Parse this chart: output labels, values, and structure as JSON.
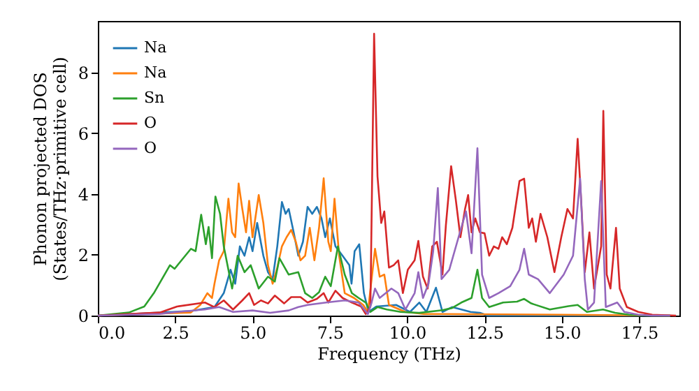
{
  "chart_data": {
    "type": "line",
    "xlabel": "Frequency (THz)",
    "ylabel": "Phonon projected DOS\n(States/THz·primitive cell)",
    "xlim": [
      0,
      18.8
    ],
    "ylim": [
      0,
      9.7
    ],
    "xticks": [
      {
        "value": 0,
        "label": "0.0"
      },
      2.5,
      {
        "value": 5,
        "label": "5.0"
      },
      7.5,
      {
        "value": 10,
        "label": "10.0"
      },
      12.5,
      {
        "value": 15,
        "label": "15.0"
      },
      17.5
    ],
    "yticks": [
      0,
      2,
      4,
      6,
      8
    ],
    "grid": false,
    "legend": "top left",
    "line_style": "solid",
    "marker": "none",
    "series": [
      {
        "name": "Na",
        "color": "#1f77b4",
        "x": [
          0,
          3.0,
          3.77,
          4.07,
          4.29,
          4.44,
          4.59,
          4.74,
          4.89,
          5.0,
          5.15,
          5.35,
          5.5,
          5.65,
          5.8,
          5.95,
          6.07,
          6.17,
          6.33,
          6.48,
          6.63,
          6.78,
          6.93,
          7.08,
          7.23,
          7.35,
          7.5,
          7.68,
          7.91,
          8.13,
          8.2,
          8.3,
          8.45,
          8.6,
          8.75,
          9.0,
          9.64,
          10.09,
          10.39,
          10.62,
          10.93,
          11.14,
          11.45,
          12.05,
          12.35,
          12.6,
          18.5
        ],
        "values": [
          0,
          0.15,
          0.28,
          0.74,
          1.51,
          1.05,
          2.28,
          1.97,
          2.58,
          2.12,
          3.05,
          1.97,
          1.43,
          1.2,
          2.28,
          3.74,
          3.35,
          3.51,
          2.74,
          1.97,
          2.43,
          3.58,
          3.35,
          3.58,
          3.2,
          2.58,
          3.2,
          2.28,
          1.97,
          1.66,
          1.05,
          2.12,
          2.35,
          0.74,
          0.12,
          0.3,
          0.35,
          0.12,
          0.43,
          0.12,
          0.92,
          0.12,
          0.28,
          0.12,
          0.09,
          0,
          0
        ]
      },
      {
        "name": "Na",
        "color": "#ff7f0e",
        "x": [
          0,
          3.0,
          3.31,
          3.54,
          3.69,
          3.77,
          3.92,
          4.07,
          4.22,
          4.34,
          4.44,
          4.55,
          4.67,
          4.79,
          4.89,
          5.0,
          5.2,
          5.35,
          5.5,
          5.65,
          5.8,
          5.95,
          6.1,
          6.25,
          6.4,
          6.55,
          6.7,
          6.85,
          7.0,
          7.15,
          7.3,
          7.45,
          7.53,
          7.65,
          7.8,
          7.98,
          8.28,
          8.58,
          8.73,
          8.96,
          9.11,
          9.26,
          9.41,
          9.94,
          10.54,
          11.14,
          15.0,
          18.5
        ],
        "values": [
          0,
          0.1,
          0.35,
          0.74,
          0.58,
          1.05,
          1.82,
          2.12,
          3.85,
          2.74,
          2.58,
          4.35,
          3.51,
          2.74,
          3.78,
          2.58,
          3.97,
          3.05,
          1.66,
          1.05,
          1.58,
          2.28,
          2.58,
          2.82,
          2.43,
          1.82,
          1.97,
          2.89,
          1.82,
          2.89,
          4.52,
          2.43,
          2.12,
          3.85,
          1.97,
          0.74,
          0.58,
          0.35,
          0.12,
          2.2,
          1.28,
          1.35,
          0.35,
          0.12,
          0.05,
          0.05,
          0.03,
          0
        ]
      },
      {
        "name": "Sn",
        "color": "#2ca02c",
        "x": [
          0,
          1.0,
          1.5,
          1.81,
          2.33,
          2.48,
          3.01,
          3.16,
          3.34,
          3.49,
          3.58,
          3.69,
          3.8,
          3.95,
          4.07,
          4.34,
          4.52,
          4.74,
          4.94,
          5.2,
          5.5,
          5.72,
          5.87,
          6.17,
          6.48,
          6.7,
          6.93,
          7.15,
          7.35,
          7.53,
          7.76,
          7.98,
          8.21,
          8.43,
          8.66,
          8.81,
          9.04,
          9.34,
          9.79,
          10.39,
          11.14,
          11.45,
          11.75,
          12.08,
          12.27,
          12.42,
          12.65,
          13.1,
          13.55,
          13.78,
          14.01,
          14.61,
          15.21,
          15.51,
          15.81,
          16.33,
          16.72,
          17.17,
          17.77,
          18.5
        ],
        "values": [
          0,
          0.1,
          0.3,
          0.74,
          1.66,
          1.54,
          2.2,
          2.12,
          3.32,
          2.35,
          2.92,
          1.89,
          3.92,
          3.35,
          2.28,
          0.89,
          1.97,
          1.43,
          1.66,
          0.89,
          1.28,
          1.12,
          1.89,
          1.35,
          1.43,
          0.74,
          0.58,
          0.77,
          1.28,
          0.97,
          2.28,
          1.35,
          0.74,
          0.58,
          0.43,
          0.12,
          0.28,
          0.2,
          0.12,
          0.09,
          0.18,
          0.25,
          0.43,
          0.58,
          1.51,
          0.58,
          0.28,
          0.43,
          0.46,
          0.55,
          0.4,
          0.2,
          0.31,
          0.35,
          0.12,
          0.2,
          0.09,
          0.03,
          0,
          0
        ]
      },
      {
        "name": "O",
        "color": "#d62728",
        "x": [
          0,
          2.0,
          2.56,
          3.46,
          3.77,
          4.07,
          4.37,
          4.67,
          4.89,
          5.05,
          5.27,
          5.5,
          5.72,
          6.02,
          6.25,
          6.55,
          6.78,
          7.08,
          7.3,
          7.45,
          7.68,
          7.91,
          8.21,
          8.51,
          8.66,
          8.81,
          8.93,
          9.04,
          9.16,
          9.26,
          9.41,
          9.56,
          9.71,
          9.86,
          10.02,
          10.24,
          10.36,
          10.51,
          10.66,
          10.81,
          10.96,
          11.14,
          11.25,
          11.42,
          11.57,
          11.72,
          11.87,
          11.97,
          12.08,
          12.2,
          12.35,
          12.5,
          12.65,
          12.8,
          12.95,
          13.07,
          13.22,
          13.4,
          13.63,
          13.78,
          13.93,
          14.04,
          14.16,
          14.31,
          14.53,
          14.76,
          14.98,
          15.18,
          15.36,
          15.51,
          15.63,
          15.74,
          15.89,
          16.04,
          16.27,
          16.34,
          16.45,
          16.57,
          16.75,
          16.87,
          17.1,
          17.47,
          17.92,
          18.69
        ],
        "values": [
          0,
          0.1,
          0.3,
          0.43,
          0.28,
          0.5,
          0.2,
          0.5,
          0.74,
          0.35,
          0.5,
          0.4,
          0.66,
          0.4,
          0.61,
          0.61,
          0.43,
          0.55,
          0.74,
          0.43,
          0.82,
          0.58,
          0.43,
          0.3,
          0.05,
          0.3,
          9.28,
          4.58,
          3.05,
          3.43,
          1.58,
          1.66,
          1.82,
          0.74,
          1.51,
          1.82,
          2.46,
          1.28,
          0.89,
          2.28,
          2.43,
          1.35,
          2.97,
          4.92,
          3.82,
          2.58,
          3.51,
          3.97,
          2.74,
          3.2,
          2.74,
          2.71,
          1.97,
          2.28,
          2.2,
          2.58,
          2.35,
          2.89,
          4.43,
          4.51,
          2.89,
          3.2,
          2.43,
          3.35,
          2.58,
          1.43,
          2.58,
          3.51,
          3.2,
          5.82,
          3.66,
          1.43,
          2.74,
          0.89,
          2.28,
          6.74,
          1.35,
          0.89,
          2.89,
          0.89,
          0.28,
          0.12,
          0.03,
          0
        ]
      },
      {
        "name": "O",
        "color": "#9467bd",
        "x": [
          0,
          2.0,
          2.56,
          3.46,
          3.92,
          4.37,
          5.0,
          5.57,
          6.17,
          6.48,
          6.78,
          7.38,
          7.98,
          8.43,
          8.73,
          8.85,
          8.96,
          9.11,
          9.49,
          9.71,
          9.94,
          10.24,
          10.36,
          10.51,
          10.69,
          10.84,
          10.99,
          11.11,
          11.36,
          11.66,
          11.9,
          12.08,
          12.27,
          12.42,
          12.65,
          12.95,
          13.33,
          13.63,
          13.78,
          13.93,
          14.23,
          14.61,
          15.06,
          15.36,
          15.59,
          15.74,
          15.84,
          16.04,
          16.27,
          16.42,
          16.79,
          17.02,
          17.47,
          17.9,
          18.5
        ],
        "values": [
          0,
          0.05,
          0.12,
          0.2,
          0.28,
          0.12,
          0.17,
          0.09,
          0.17,
          0.28,
          0.35,
          0.43,
          0.5,
          0.43,
          0.05,
          0.43,
          0.89,
          0.58,
          0.89,
          0.74,
          0.2,
          0.74,
          1.43,
          0.58,
          1.05,
          2.12,
          4.2,
          1.2,
          1.51,
          2.58,
          3.43,
          2.05,
          5.51,
          1.35,
          0.58,
          0.74,
          0.97,
          1.51,
          2.2,
          1.35,
          1.2,
          0.74,
          1.35,
          1.97,
          4.51,
          1.2,
          0.2,
          0.43,
          4.43,
          0.28,
          0.43,
          0.12,
          0.03,
          0,
          0
        ]
      }
    ]
  }
}
